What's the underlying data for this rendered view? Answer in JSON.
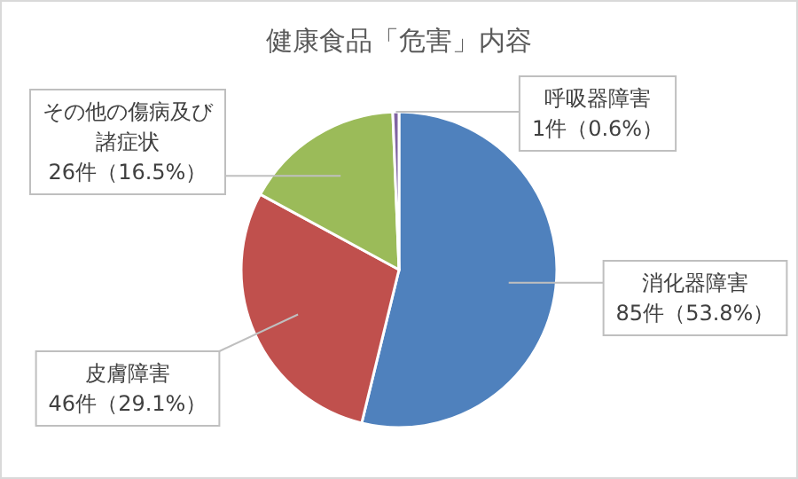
{
  "chart_data": {
    "type": "pie",
    "title": "健康食品「危害」内容",
    "categories": [
      "消化器障害",
      "皮膚障害",
      "その他の傷病及び諸症状",
      "呼吸器障害"
    ],
    "values": [
      85,
      46,
      26,
      1
    ],
    "value_labels": [
      "85件（53.8%）",
      "46件（29.1%）",
      "26件（16.5%）",
      "1件（0.6%）"
    ],
    "colors": [
      "#4f81bd",
      "#c0504d",
      "#9bbb59",
      "#8064a2"
    ]
  }
}
